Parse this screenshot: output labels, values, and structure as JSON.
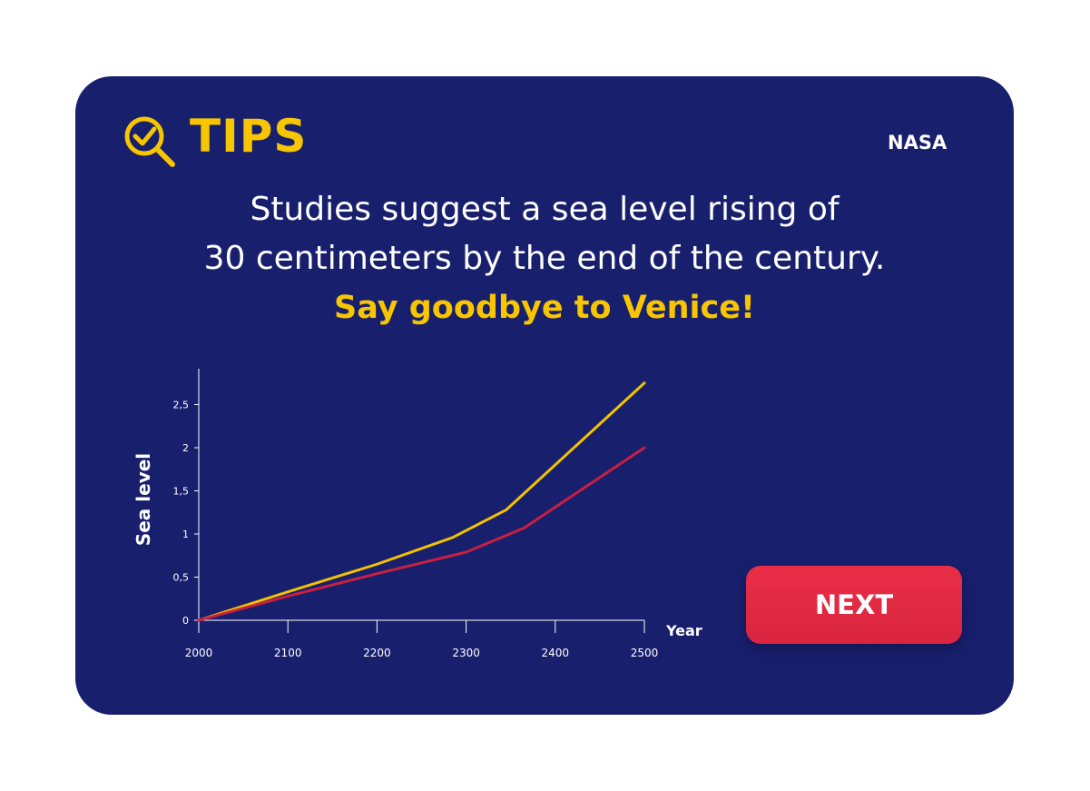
{
  "header": {
    "title": "TIPS",
    "brand": "NASA"
  },
  "message": {
    "line1": "Studies suggest a sea level rising of",
    "line2": "30 centimeters by the end of the century.",
    "highlight": "Say goodbye to Venice!"
  },
  "colors": {
    "background": "#181f6d",
    "accent": "#f7c600",
    "series_red": "#c8203e",
    "button": "#e62a45"
  },
  "icons": {
    "tips": "magnifier-check-icon"
  },
  "chart_data": {
    "type": "line",
    "title": "",
    "xlabel": "Year",
    "ylabel": "Sea level",
    "xlim": [
      2000,
      2500
    ],
    "ylim": [
      0,
      2.9
    ],
    "x_ticks": [
      "2000",
      "2100",
      "2200",
      "2300",
      "2400",
      "2500"
    ],
    "y_ticks": [
      "0",
      "0,5",
      "1",
      "1,5",
      "2",
      "2,5"
    ],
    "grid": false,
    "series": [
      {
        "color": "#f2c200",
        "x": [
          2000,
          2100,
          2200,
          2285,
          2345,
          2500
        ],
        "y": [
          0,
          0.33,
          0.65,
          0.96,
          1.28,
          2.75
        ]
      },
      {
        "color": "#c8203e",
        "x": [
          2000,
          2100,
          2200,
          2300,
          2365,
          2500
        ],
        "y": [
          0,
          0.28,
          0.54,
          0.79,
          1.07,
          2.0
        ]
      }
    ]
  },
  "actions": {
    "next_label": "NEXT"
  }
}
